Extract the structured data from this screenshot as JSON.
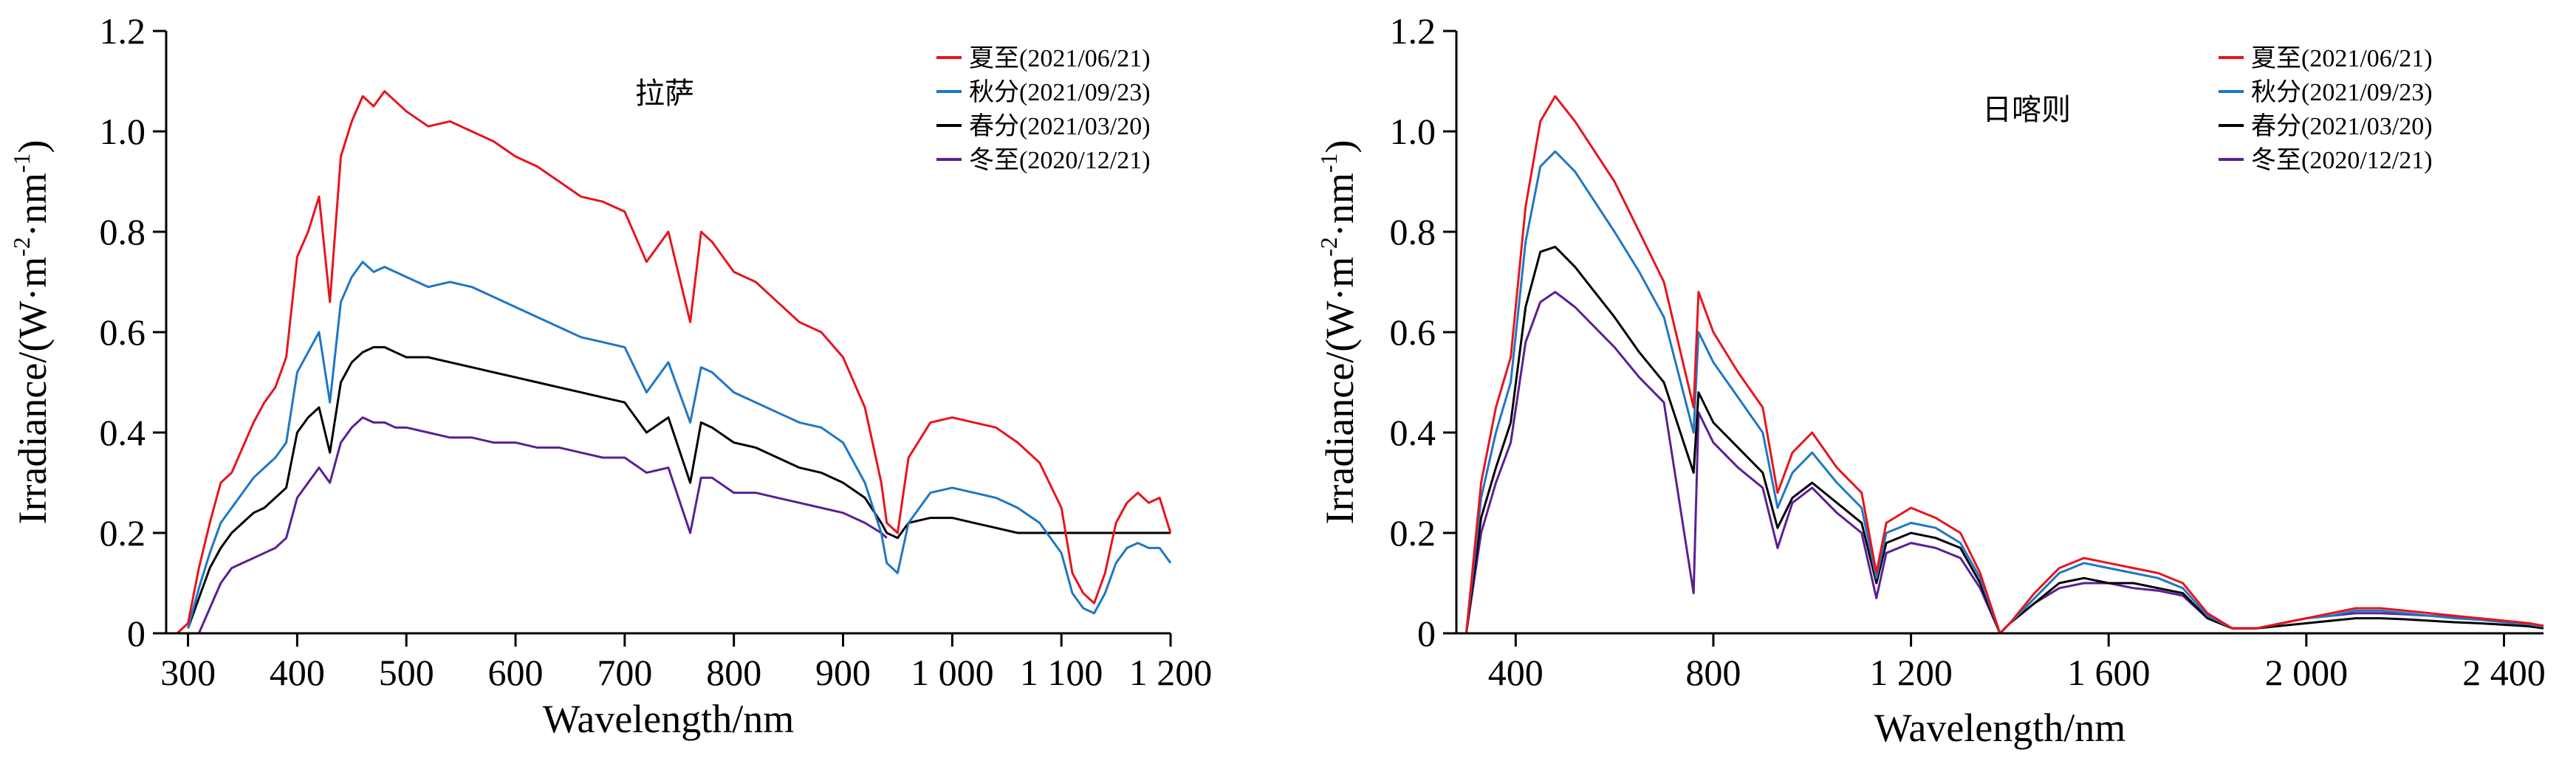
{
  "colors": {
    "summer": "#e8141c",
    "autumn": "#1f77c4",
    "spring": "#000000",
    "winter": "#5b1f95"
  },
  "chart_data": [
    {
      "type": "line",
      "site": "拉萨",
      "xlabel": "Wavelength/nm",
      "ylabel_main": "Irradiance/(W·m",
      "ylabel_sup1": "-2",
      "ylabel_mid": "·nm",
      "ylabel_sup2": "-1",
      "ylabel_end": ")",
      "xlim": [
        280,
        1200
      ],
      "ylim": [
        0,
        1.2
      ],
      "xticks": [
        300,
        400,
        500,
        600,
        700,
        800,
        900,
        1000,
        1100,
        1200
      ],
      "xtick_labels": [
        "300",
        "400",
        "500",
        "600",
        "700",
        "800",
        "900",
        "1 000",
        "1 100",
        "1 200"
      ],
      "yticks": [
        0,
        0.2,
        0.4,
        0.6,
        0.8,
        1.0,
        1.2
      ],
      "ytick_labels": [
        "0",
        "0.2",
        "0.4",
        "0.6",
        "0.8",
        "1.0",
        "1.2"
      ],
      "legend_position": "top-right",
      "series": [
        {
          "name": "夏至(2021/06/21)",
          "color_key": "summer",
          "x": [
            280,
            290,
            300,
            310,
            320,
            330,
            340,
            350,
            360,
            370,
            380,
            390,
            400,
            410,
            420,
            430,
            440,
            450,
            460,
            470,
            480,
            490,
            500,
            520,
            540,
            560,
            580,
            600,
            620,
            640,
            660,
            680,
            700,
            720,
            740,
            760,
            770,
            780,
            800,
            820,
            840,
            860,
            880,
            900,
            920,
            935,
            940,
            950,
            960,
            980,
            1000,
            1020,
            1040,
            1060,
            1080,
            1100,
            1110,
            1120,
            1130,
            1140,
            1150,
            1160,
            1170,
            1180,
            1190,
            1200
          ],
          "y": [
            0,
            0,
            0.02,
            0.13,
            0.22,
            0.3,
            0.32,
            0.37,
            0.42,
            0.46,
            0.49,
            0.55,
            0.75,
            0.8,
            0.87,
            0.66,
            0.95,
            1.02,
            1.07,
            1.05,
            1.08,
            1.06,
            1.04,
            1.01,
            1.02,
            1.0,
            0.98,
            0.95,
            0.93,
            0.9,
            0.87,
            0.86,
            0.84,
            0.74,
            0.8,
            0.62,
            0.8,
            0.78,
            0.72,
            0.7,
            0.66,
            0.62,
            0.6,
            0.55,
            0.45,
            0.3,
            0.22,
            0.2,
            0.35,
            0.42,
            0.43,
            0.42,
            0.41,
            0.38,
            0.34,
            0.25,
            0.12,
            0.08,
            0.06,
            0.12,
            0.22,
            0.26,
            0.28,
            0.26,
            0.27,
            0.2
          ]
        },
        {
          "name": "秋分(2021/09/23)",
          "color_key": "autumn",
          "x": [
            300,
            310,
            320,
            330,
            340,
            350,
            360,
            370,
            380,
            390,
            400,
            410,
            420,
            430,
            440,
            450,
            460,
            470,
            480,
            490,
            500,
            520,
            540,
            560,
            580,
            600,
            620,
            640,
            660,
            680,
            700,
            720,
            740,
            760,
            770,
            780,
            800,
            820,
            840,
            860,
            880,
            900,
            920,
            935,
            940,
            950,
            960,
            980,
            1000,
            1020,
            1040,
            1060,
            1080,
            1100,
            1110,
            1120,
            1130,
            1140,
            1150,
            1160,
            1170,
            1180,
            1190,
            1200
          ],
          "y": [
            0.01,
            0.09,
            0.16,
            0.22,
            0.25,
            0.28,
            0.31,
            0.33,
            0.35,
            0.38,
            0.52,
            0.56,
            0.6,
            0.46,
            0.66,
            0.71,
            0.74,
            0.72,
            0.73,
            0.72,
            0.71,
            0.69,
            0.7,
            0.69,
            0.67,
            0.65,
            0.63,
            0.61,
            0.59,
            0.58,
            0.57,
            0.48,
            0.54,
            0.42,
            0.53,
            0.52,
            0.48,
            0.46,
            0.44,
            0.42,
            0.41,
            0.38,
            0.3,
            0.2,
            0.14,
            0.12,
            0.22,
            0.28,
            0.29,
            0.28,
            0.27,
            0.25,
            0.22,
            0.16,
            0.08,
            0.05,
            0.04,
            0.08,
            0.14,
            0.17,
            0.18,
            0.17,
            0.17,
            0.14
          ]
        },
        {
          "name": "春分(2021/03/20)",
          "color_key": "spring",
          "x": [
            300,
            310,
            320,
            330,
            340,
            350,
            360,
            370,
            380,
            390,
            400,
            410,
            420,
            430,
            440,
            450,
            460,
            470,
            480,
            490,
            500,
            520,
            540,
            560,
            580,
            600,
            620,
            640,
            660,
            680,
            700,
            720,
            740,
            760,
            770,
            780,
            800,
            820,
            840,
            860,
            880,
            900,
            920,
            935,
            940,
            950,
            960,
            980,
            1000,
            1020,
            1040,
            1060,
            1080,
            1100,
            1120,
            1140,
            1160,
            1180,
            1200
          ],
          "y": [
            0.01,
            0.07,
            0.13,
            0.17,
            0.2,
            0.22,
            0.24,
            0.25,
            0.27,
            0.29,
            0.4,
            0.43,
            0.45,
            0.36,
            0.5,
            0.54,
            0.56,
            0.57,
            0.57,
            0.56,
            0.55,
            0.55,
            0.54,
            0.53,
            0.52,
            0.51,
            0.5,
            0.49,
            0.48,
            0.47,
            0.46,
            0.4,
            0.43,
            0.3,
            0.42,
            0.41,
            0.38,
            0.37,
            0.35,
            0.33,
            0.32,
            0.3,
            0.27,
            0.22,
            0.2,
            0.19,
            0.22,
            0.23,
            0.23,
            0.22,
            0.21,
            0.2,
            0.2,
            0.2,
            0.2,
            0.2,
            0.2,
            0.2,
            0.2
          ]
        },
        {
          "name": "冬至(2020/12/21)",
          "color_key": "winter",
          "x": [
            310,
            320,
            330,
            340,
            350,
            360,
            370,
            380,
            390,
            400,
            410,
            420,
            430,
            440,
            450,
            460,
            470,
            480,
            490,
            500,
            520,
            540,
            560,
            580,
            600,
            620,
            640,
            660,
            680,
            700,
            720,
            740,
            760,
            770,
            780,
            800,
            820,
            840,
            860,
            880,
            900,
            920,
            935,
            940
          ],
          "y": [
            0.0,
            0.05,
            0.1,
            0.13,
            0.14,
            0.15,
            0.16,
            0.17,
            0.19,
            0.27,
            0.3,
            0.33,
            0.3,
            0.38,
            0.41,
            0.43,
            0.42,
            0.42,
            0.41,
            0.41,
            0.4,
            0.39,
            0.39,
            0.38,
            0.38,
            0.37,
            0.37,
            0.36,
            0.35,
            0.35,
            0.32,
            0.33,
            0.2,
            0.31,
            0.31,
            0.28,
            0.28,
            0.27,
            0.26,
            0.25,
            0.24,
            0.22,
            0.2,
            0.19
          ]
        }
      ]
    },
    {
      "type": "line",
      "site": "日喀则",
      "xlabel": "Wavelength/nm",
      "ylabel_main": "Irradiance/(W·m",
      "ylabel_sup1": "-2",
      "ylabel_mid": "·nm",
      "ylabel_sup2": "-1",
      "ylabel_end": ")",
      "xlim": [
        280,
        2480
      ],
      "ylim": [
        0,
        1.2
      ],
      "xticks": [
        400,
        800,
        1200,
        1600,
        2000,
        2400
      ],
      "xtick_labels": [
        "400",
        "800",
        "1 200",
        "1 600",
        "2 000",
        "2 400"
      ],
      "yticks": [
        0,
        0.2,
        0.4,
        0.6,
        0.8,
        1.0,
        1.2
      ],
      "ytick_labels": [
        "0",
        "0.2",
        "0.4",
        "0.6",
        "0.8",
        "1.0",
        "1.2"
      ],
      "legend_position": "top-right",
      "series": [
        {
          "name": "夏至(2021/06/21)",
          "color_key": "summer",
          "x": [
            300,
            330,
            360,
            390,
            420,
            450,
            480,
            520,
            560,
            600,
            650,
            700,
            760,
            770,
            800,
            850,
            900,
            930,
            960,
            1000,
            1050,
            1100,
            1130,
            1150,
            1200,
            1250,
            1300,
            1340,
            1380,
            1400,
            1450,
            1500,
            1550,
            1600,
            1650,
            1700,
            1750,
            1800,
            1850,
            1900,
            1950,
            2000,
            2050,
            2100,
            2150,
            2200,
            2250,
            2300,
            2350,
            2400,
            2450,
            2480
          ],
          "y": [
            0,
            0.3,
            0.45,
            0.55,
            0.85,
            1.02,
            1.07,
            1.02,
            0.96,
            0.9,
            0.8,
            0.7,
            0.45,
            0.68,
            0.6,
            0.52,
            0.45,
            0.28,
            0.36,
            0.4,
            0.33,
            0.28,
            0.12,
            0.22,
            0.25,
            0.23,
            0.2,
            0.12,
            0.0,
            0.02,
            0.08,
            0.13,
            0.15,
            0.14,
            0.13,
            0.12,
            0.1,
            0.04,
            0.01,
            0.01,
            0.02,
            0.03,
            0.04,
            0.05,
            0.05,
            0.045,
            0.04,
            0.035,
            0.03,
            0.025,
            0.02,
            0.015
          ]
        },
        {
          "name": "秋分(2021/09/23)",
          "color_key": "autumn",
          "x": [
            300,
            330,
            360,
            390,
            420,
            450,
            480,
            520,
            560,
            600,
            650,
            700,
            760,
            770,
            800,
            850,
            900,
            930,
            960,
            1000,
            1050,
            1100,
            1130,
            1150,
            1200,
            1250,
            1300,
            1340,
            1380,
            1400,
            1450,
            1500,
            1550,
            1600,
            1650,
            1700,
            1750,
            1800,
            1850,
            1900,
            1950,
            2000,
            2050,
            2100,
            2150,
            2200,
            2250,
            2300,
            2350,
            2400,
            2450,
            2480
          ],
          "y": [
            0,
            0.27,
            0.4,
            0.5,
            0.78,
            0.93,
            0.96,
            0.92,
            0.86,
            0.8,
            0.72,
            0.63,
            0.4,
            0.6,
            0.54,
            0.47,
            0.4,
            0.25,
            0.32,
            0.36,
            0.3,
            0.25,
            0.11,
            0.2,
            0.22,
            0.21,
            0.18,
            0.11,
            0.0,
            0.02,
            0.07,
            0.12,
            0.14,
            0.13,
            0.12,
            0.11,
            0.09,
            0.035,
            0.01,
            0.01,
            0.02,
            0.03,
            0.035,
            0.045,
            0.045,
            0.04,
            0.035,
            0.03,
            0.027,
            0.022,
            0.018,
            0.013
          ]
        },
        {
          "name": "春分(2021/03/20)",
          "color_key": "spring",
          "x": [
            300,
            330,
            360,
            390,
            420,
            450,
            480,
            520,
            560,
            600,
            650,
            700,
            760,
            770,
            800,
            850,
            900,
            930,
            960,
            1000,
            1050,
            1100,
            1130,
            1150,
            1200,
            1250,
            1300,
            1340,
            1380,
            1400,
            1450,
            1500,
            1550,
            1600,
            1650,
            1700,
            1750,
            1800,
            1850,
            1900,
            1950,
            2000,
            2050,
            2100,
            2150,
            2200,
            2250,
            2300,
            2350,
            2400,
            2450,
            2480
          ],
          "y": [
            0,
            0.23,
            0.33,
            0.42,
            0.65,
            0.76,
            0.77,
            0.73,
            0.68,
            0.63,
            0.56,
            0.5,
            0.32,
            0.48,
            0.42,
            0.37,
            0.32,
            0.21,
            0.27,
            0.3,
            0.26,
            0.22,
            0.1,
            0.18,
            0.2,
            0.19,
            0.17,
            0.1,
            0.0,
            0.02,
            0.06,
            0.1,
            0.11,
            0.1,
            0.1,
            0.09,
            0.08,
            0.03,
            0.01,
            0.01,
            0.015,
            0.02,
            0.025,
            0.03,
            0.03,
            0.028,
            0.025,
            0.022,
            0.02,
            0.017,
            0.014,
            0.01
          ]
        },
        {
          "name": "冬至(2020/12/21)",
          "color_key": "winter",
          "x": [
            300,
            330,
            360,
            390,
            420,
            450,
            480,
            520,
            560,
            600,
            650,
            700,
            760,
            770,
            800,
            850,
            900,
            930,
            960,
            1000,
            1050,
            1100,
            1130,
            1150,
            1200,
            1250,
            1300,
            1340,
            1380,
            1400,
            1450,
            1500,
            1550,
            1600,
            1650,
            1700,
            1750,
            1800,
            1850,
            1900,
            1950,
            2000,
            2050,
            2100,
            2150,
            2200,
            2250,
            2300,
            2350,
            2400,
            2450,
            2480
          ],
          "y": [
            0,
            0.2,
            0.3,
            0.38,
            0.58,
            0.66,
            0.68,
            0.65,
            0.61,
            0.57,
            0.51,
            0.46,
            0.08,
            0.44,
            0.38,
            0.33,
            0.29,
            0.17,
            0.26,
            0.29,
            0.24,
            0.2,
            0.07,
            0.16,
            0.18,
            0.17,
            0.15,
            0.09,
            0.0,
            0.02,
            0.06,
            0.09,
            0.1,
            0.1,
            0.09,
            0.085,
            0.075,
            0.03,
            0.01,
            0.01,
            0.02,
            0.03,
            0.035,
            0.04,
            0.04,
            0.038,
            0.035,
            0.032,
            0.03,
            0.025,
            0.02,
            0.015
          ]
        }
      ]
    }
  ]
}
